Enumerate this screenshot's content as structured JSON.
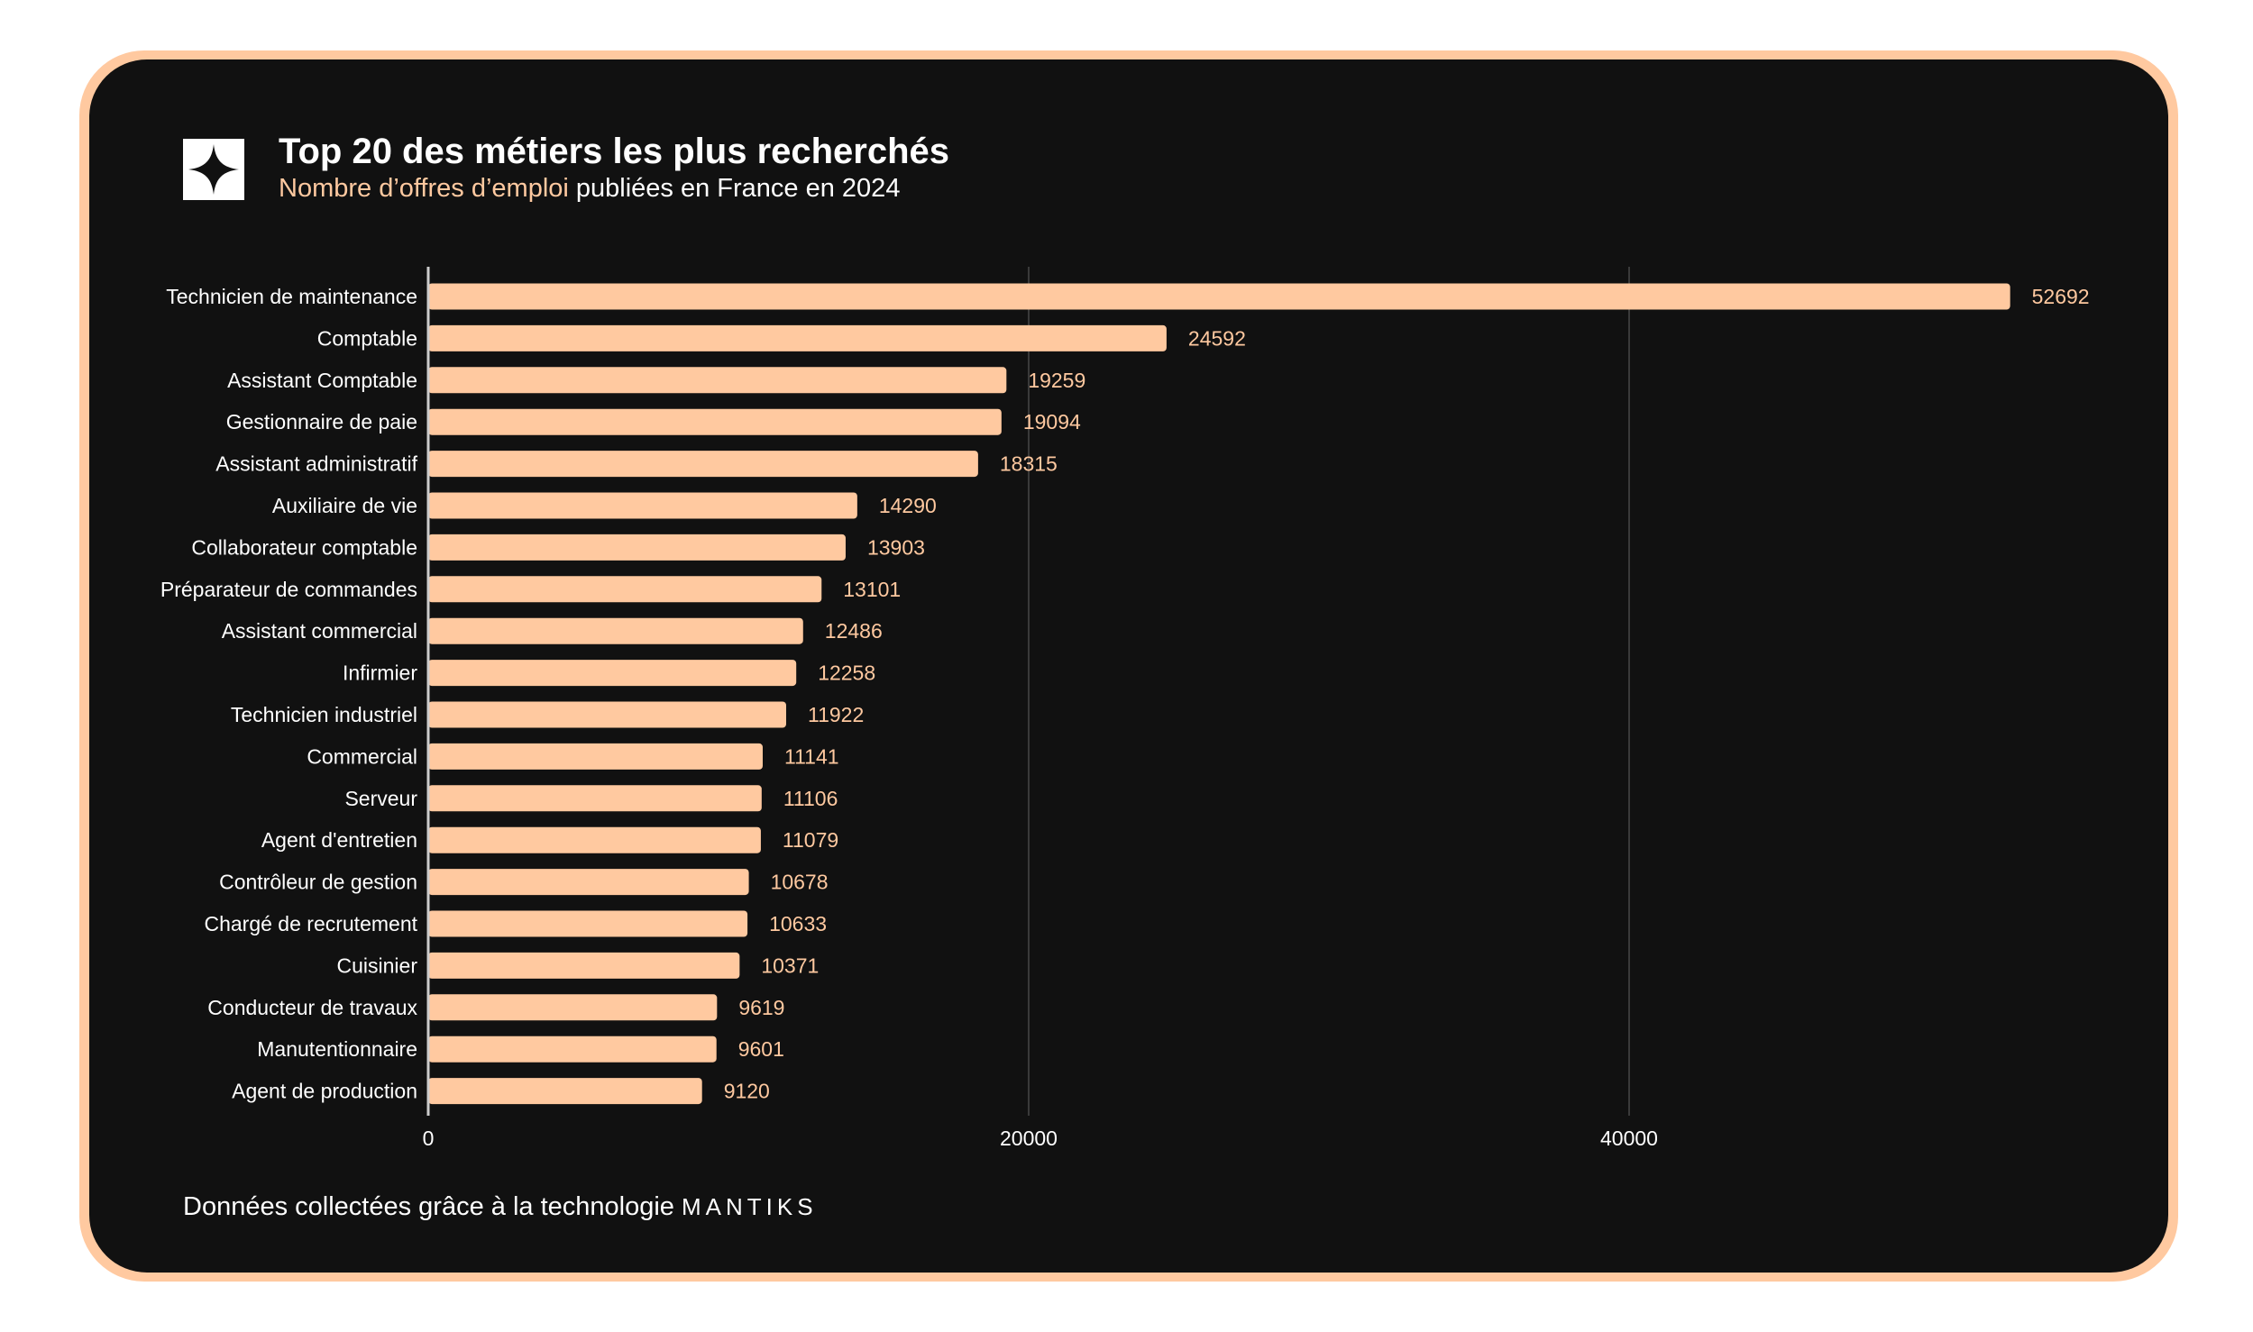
{
  "header": {
    "title": "Top 20 des métiers les plus recherchés",
    "subtitle_highlight": "Nombre d’offres d’emploi",
    "subtitle_rest": " publiées en France en 2024",
    "logo_icon": "four-point-star-icon"
  },
  "footer": {
    "text": "Données collectées grâce à la technologie ",
    "brand": "MANTIKS"
  },
  "colors": {
    "bar": "#ffc9a0",
    "background": "#111111",
    "frame": "#ffc9a0",
    "label": "#ffffff",
    "value_label": "#ffc9a0",
    "grid": "#3a3a3a"
  },
  "chart_data": {
    "type": "bar",
    "orientation": "horizontal",
    "title": "Top 20 des métiers les plus recherchés",
    "subtitle": "Nombre d’offres d’emploi publiées en France en 2024",
    "xlabel": "",
    "ylabel": "",
    "xlim": [
      0,
      55000
    ],
    "xticks": [
      0,
      20000,
      40000
    ],
    "grid": "vertical",
    "legend": "none",
    "categories": [
      "Technicien de maintenance",
      "Comptable",
      "Assistant Comptable",
      "Gestionnaire de paie",
      "Assistant administratif",
      "Auxiliaire de vie",
      "Collaborateur comptable",
      "Préparateur de commandes",
      "Assistant commercial",
      "Infirmier",
      "Technicien industriel",
      "Commercial",
      "Serveur",
      "Agent d'entretien",
      "Contrôleur de gestion",
      "Chargé de recrutement",
      "Cuisinier",
      "Conducteur de travaux",
      "Manutentionnaire",
      "Agent de production"
    ],
    "values": [
      52692,
      24592,
      19259,
      19094,
      18315,
      14290,
      13903,
      13101,
      12486,
      12258,
      11922,
      11141,
      11106,
      11079,
      10678,
      10633,
      10371,
      9619,
      9601,
      9120
    ]
  }
}
